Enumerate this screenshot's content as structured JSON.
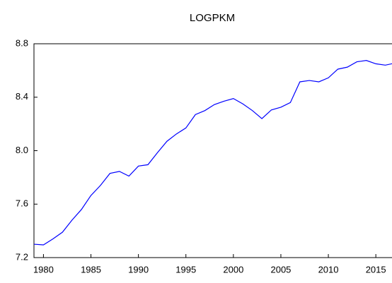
{
  "chart_data": {
    "type": "line",
    "title": "LOGPKM",
    "x": [
      1979,
      1980,
      1981,
      1982,
      1983,
      1984,
      1985,
      1986,
      1987,
      1988,
      1989,
      1990,
      1991,
      1992,
      1993,
      1994,
      1995,
      1996,
      1997,
      1998,
      1999,
      2000,
      2001,
      2002,
      2003,
      2004,
      2005,
      2006,
      2007,
      2008,
      2009,
      2010,
      2011,
      2012,
      2013,
      2014,
      2015,
      2016,
      2017
    ],
    "series": [
      {
        "name": "LOGPKM",
        "color": "#0000ff",
        "values": [
          7.3,
          7.295,
          7.34,
          7.39,
          7.48,
          7.56,
          7.665,
          7.74,
          7.83,
          7.845,
          7.81,
          7.885,
          7.895,
          7.985,
          8.07,
          8.125,
          8.17,
          8.27,
          8.3,
          8.345,
          8.37,
          8.39,
          8.35,
          8.3,
          8.24,
          8.305,
          8.325,
          8.36,
          8.515,
          8.525,
          8.515,
          8.545,
          8.61,
          8.625,
          8.665,
          8.675,
          8.65,
          8.64,
          8.655
        ]
      }
    ],
    "xlim": [
      1979,
      2017
    ],
    "xticks": [
      1980,
      1985,
      1990,
      1995,
      2000,
      2005,
      2010,
      2015
    ],
    "ylim": [
      7.2,
      8.8
    ],
    "yticks": [
      7.2,
      7.6,
      {
        "value": 8,
        "label": "8.0"
      },
      8.4,
      8.8
    ],
    "grid": false
  }
}
